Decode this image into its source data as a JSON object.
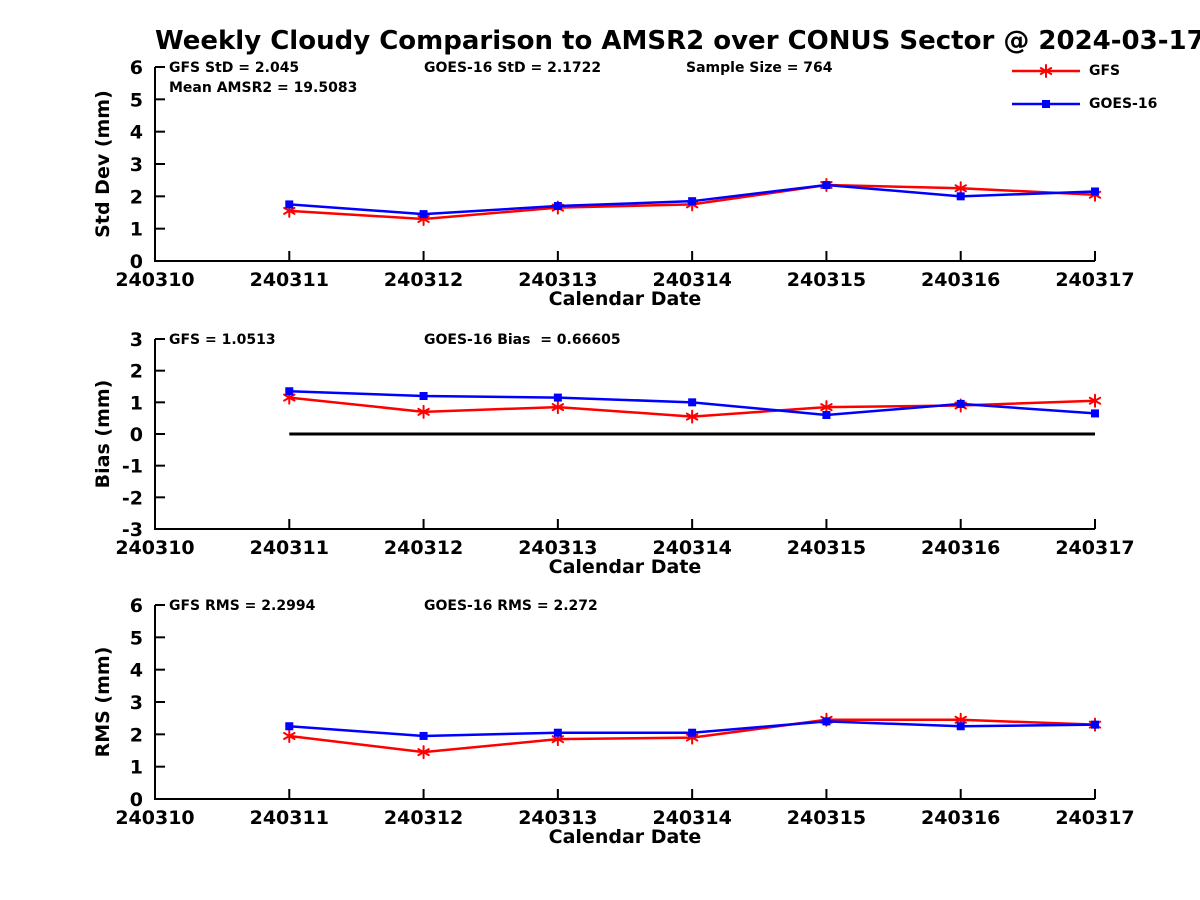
{
  "title": "Weekly Cloudy Comparison to AMSR2 over CONUS Sector @ 2024-03-17",
  "colors": {
    "background": "#ffffff",
    "axis": "#000000",
    "text": "#000000",
    "gfs": "#ff0000",
    "goes16": "#0000ff",
    "zero_line": "#000000"
  },
  "legend": {
    "items": [
      {
        "label": "GFS",
        "color": "#ff0000",
        "marker": "star"
      },
      {
        "label": "GOES-16",
        "color": "#0000ff",
        "marker": "square"
      }
    ]
  },
  "chart_data": [
    {
      "id": "std-dev",
      "type": "line",
      "ylabel": "Std Dev (mm)",
      "xlabel": "Calendar Date",
      "ylim": [
        0,
        6
      ],
      "yticks": [
        0,
        1,
        2,
        3,
        4,
        5,
        6
      ],
      "xlim": [
        240310,
        240317
      ],
      "xticks": [
        240310,
        240311,
        240312,
        240313,
        240314,
        240315,
        240316,
        240317
      ],
      "x": [
        240311,
        240312,
        240313,
        240314,
        240315,
        240316,
        240317
      ],
      "series": [
        {
          "name": "GFS",
          "color": "#ff0000",
          "marker": "star",
          "values": [
            1.55,
            1.3,
            1.65,
            1.75,
            2.35,
            2.25,
            2.05
          ]
        },
        {
          "name": "GOES-16",
          "color": "#0000ff",
          "marker": "square",
          "values": [
            1.75,
            1.45,
            1.7,
            1.85,
            2.35,
            2.0,
            2.15
          ]
        }
      ],
      "annotations": [
        {
          "text": "GFS StD = 2.045",
          "dx": 14,
          "row": 1
        },
        {
          "text": "Mean AMSR2 = 19.5083",
          "dx": 14,
          "row": 2
        },
        {
          "text": "GOES-16 StD = 2.1722",
          "dx": 269,
          "row": 1
        },
        {
          "text": "Sample Size = 764",
          "dx": 531,
          "row": 1
        }
      ]
    },
    {
      "id": "bias",
      "type": "line",
      "ylabel": "Bias (mm)",
      "xlabel": "Calendar Date",
      "ylim": [
        -3,
        3
      ],
      "yticks": [
        3,
        2,
        1,
        0,
        -1,
        -2,
        -3
      ],
      "xlim": [
        240310,
        240317
      ],
      "xticks": [
        240310,
        240311,
        240312,
        240313,
        240314,
        240315,
        240316,
        240317
      ],
      "x": [
        240311,
        240312,
        240313,
        240314,
        240315,
        240316,
        240317
      ],
      "series": [
        {
          "name": "GFS",
          "color": "#ff0000",
          "marker": "star",
          "values": [
            1.15,
            0.7,
            0.85,
            0.55,
            0.85,
            0.9,
            1.05
          ]
        },
        {
          "name": "GOES-16",
          "color": "#0000ff",
          "marker": "square",
          "values": [
            1.35,
            1.2,
            1.15,
            1.0,
            0.6,
            0.95,
            0.65
          ]
        }
      ],
      "zero_line": {
        "y": 0,
        "x_from": 240311,
        "x_to": 240317
      },
      "annotations": [
        {
          "text": "GFS = 1.0513",
          "dx": 14,
          "row": 1
        },
        {
          "text": "GOES-16 Bias  = 0.66605",
          "dx": 269,
          "row": 1
        }
      ]
    },
    {
      "id": "rms",
      "type": "line",
      "ylabel": "RMS (mm)",
      "xlabel": "Calendar Date",
      "ylim": [
        0,
        6
      ],
      "yticks": [
        0,
        1,
        2,
        3,
        4,
        5,
        6
      ],
      "xlim": [
        240310,
        240317
      ],
      "xticks": [
        240310,
        240311,
        240312,
        240313,
        240314,
        240315,
        240316,
        240317
      ],
      "x": [
        240311,
        240312,
        240313,
        240314,
        240315,
        240316,
        240317
      ],
      "series": [
        {
          "name": "GFS",
          "color": "#ff0000",
          "marker": "star",
          "values": [
            1.95,
            1.45,
            1.85,
            1.9,
            2.45,
            2.45,
            2.3
          ]
        },
        {
          "name": "GOES-16",
          "color": "#0000ff",
          "marker": "square",
          "values": [
            2.25,
            1.95,
            2.05,
            2.05,
            2.4,
            2.25,
            2.3
          ]
        }
      ],
      "annotations": [
        {
          "text": "GFS RMS = 2.2994",
          "dx": 14,
          "row": 1
        },
        {
          "text": "GOES-16 RMS = 2.272",
          "dx": 269,
          "row": 1
        }
      ]
    }
  ]
}
